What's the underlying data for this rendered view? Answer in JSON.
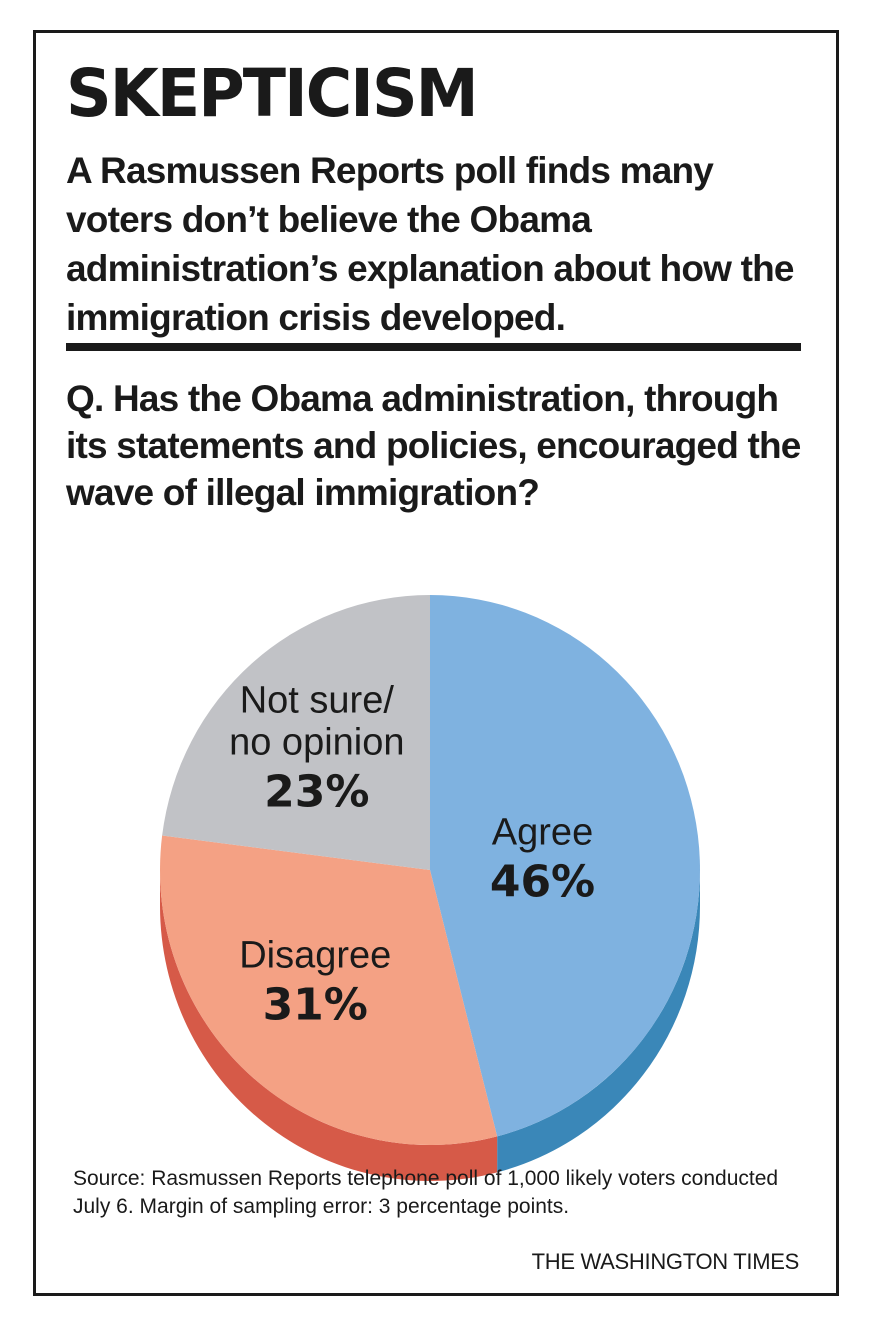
{
  "graphic": {
    "title": "SKEPTICISM",
    "subtitle": "A Rasmussen Reports poll finds many voters don’t believe the Obama administration’s explanation about how the immigration crisis developed.",
    "question": "Q. Has the Obama administration, through its statements and policies, encouraged the wave of illegal immigration?",
    "source": "Source: Rasmussen Reports telephone poll of 1,000 likely voters conducted July 6. Margin of sampling error:  3 percentage points.",
    "credit": "THE WASHINGTON TIMES"
  },
  "chart_data": {
    "type": "pie",
    "style": "3d",
    "units": "%",
    "slices": [
      {
        "label_lines": [
          "Agree"
        ],
        "value": 46,
        "value_label": "46%",
        "color": "#7fb2e0",
        "side_color": "#3a87b8"
      },
      {
        "label_lines": [
          "Disagree"
        ],
        "value": 31,
        "value_label": "31%",
        "color": "#f4a184",
        "side_color": "#d65a48"
      },
      {
        "label_lines": [
          "Not sure/",
          "no opinion"
        ],
        "value": 23,
        "value_label": "23%",
        "color": "#c1c2c6",
        "side_color": "#9a9ba0"
      }
    ]
  }
}
